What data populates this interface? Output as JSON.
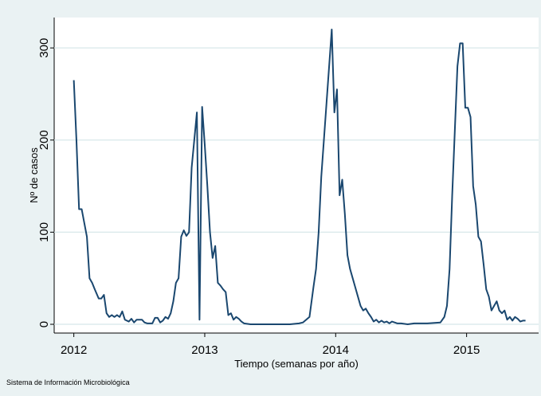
{
  "chart_data": {
    "type": "line",
    "x_label": "Tiempo (semanas por año)",
    "y_label": "Nº de casos",
    "note": "Sistema de Información Microbiológica",
    "x": [
      2012.0,
      2012.02,
      2012.04,
      2012.06,
      2012.08,
      2012.1,
      2012.12,
      2012.14,
      2012.16,
      2012.19,
      2012.21,
      2012.23,
      2012.25,
      2012.27,
      2012.29,
      2012.31,
      2012.33,
      2012.35,
      2012.37,
      2012.39,
      2012.42,
      2012.44,
      2012.46,
      2012.48,
      2012.5,
      2012.52,
      2012.54,
      2012.56,
      2012.58,
      2012.6,
      2012.62,
      2012.64,
      2012.66,
      2012.68,
      2012.7,
      2012.72,
      2012.74,
      2012.76,
      2012.78,
      2012.8,
      2012.82,
      2012.84,
      2012.86,
      2012.88,
      2012.9,
      2012.92,
      2012.94,
      2012.96,
      2012.98,
      2013.0,
      2013.02,
      2013.04,
      2013.06,
      2013.08,
      2013.1,
      2013.12,
      2013.14,
      2013.16,
      2013.18,
      2013.2,
      2013.22,
      2013.24,
      2013.26,
      2013.28,
      2013.3,
      2013.35,
      2013.45,
      2013.55,
      2013.65,
      2013.72,
      2013.75,
      2013.8,
      2013.83,
      2013.85,
      2013.87,
      2013.89,
      2013.91,
      2013.93,
      2013.95,
      2013.97,
      2013.99,
      2014.01,
      2014.03,
      2014.05,
      2014.07,
      2014.09,
      2014.11,
      2014.13,
      2014.15,
      2014.17,
      2014.19,
      2014.21,
      2014.23,
      2014.25,
      2014.27,
      2014.29,
      2014.31,
      2014.33,
      2014.35,
      2014.37,
      2014.39,
      2014.41,
      2014.43,
      2014.45,
      2014.47,
      2014.5,
      2014.55,
      2014.6,
      2014.7,
      2014.8,
      2014.83,
      2014.85,
      2014.87,
      2014.89,
      2014.91,
      2014.93,
      2014.95,
      2014.97,
      2014.99,
      2015.01,
      2015.03,
      2015.05,
      2015.07,
      2015.09,
      2015.11,
      2015.13,
      2015.15,
      2015.17,
      2015.19,
      2015.21,
      2015.23,
      2015.25,
      2015.27,
      2015.29,
      2015.31,
      2015.33,
      2015.35,
      2015.37,
      2015.39,
      2015.41,
      2015.43,
      2015.45
    ],
    "series": [
      {
        "color": "#1a476f",
        "values": [
          265,
          200,
          125,
          125,
          110,
          95,
          50,
          45,
          38,
          28,
          28,
          32,
          12,
          8,
          10,
          8,
          10,
          8,
          14,
          5,
          3,
          6,
          2,
          5,
          5,
          5,
          2,
          1,
          1,
          1,
          7,
          7,
          2,
          4,
          8,
          6,
          12,
          25,
          45,
          50,
          95,
          102,
          96,
          100,
          170,
          200,
          230,
          5,
          236,
          195,
          150,
          100,
          72,
          85,
          45,
          42,
          38,
          35,
          10,
          12,
          5,
          8,
          6,
          3,
          1,
          0,
          0,
          0,
          0,
          1,
          2,
          8,
          40,
          60,
          100,
          160,
          200,
          240,
          280,
          320,
          230,
          255,
          140,
          157,
          120,
          75,
          60,
          50,
          40,
          30,
          20,
          15,
          17,
          12,
          8,
          3,
          5,
          2,
          4,
          2,
          3,
          1,
          3,
          2,
          1,
          1,
          0,
          1,
          1,
          2,
          8,
          20,
          60,
          140,
          210,
          280,
          305,
          305,
          235,
          235,
          225,
          150,
          130,
          95,
          90,
          65,
          38,
          30,
          15,
          20,
          25,
          15,
          12,
          15,
          5,
          8,
          4,
          8,
          6,
          3,
          4,
          4
        ]
      }
    ],
    "xlim": [
      2011.85,
      2015.55
    ],
    "xticks": [
      2012,
      2013,
      2014,
      2015
    ],
    "ylim": [
      -9.5,
      333
    ],
    "yticks": [
      0,
      100,
      200,
      300
    ],
    "grid": true
  }
}
